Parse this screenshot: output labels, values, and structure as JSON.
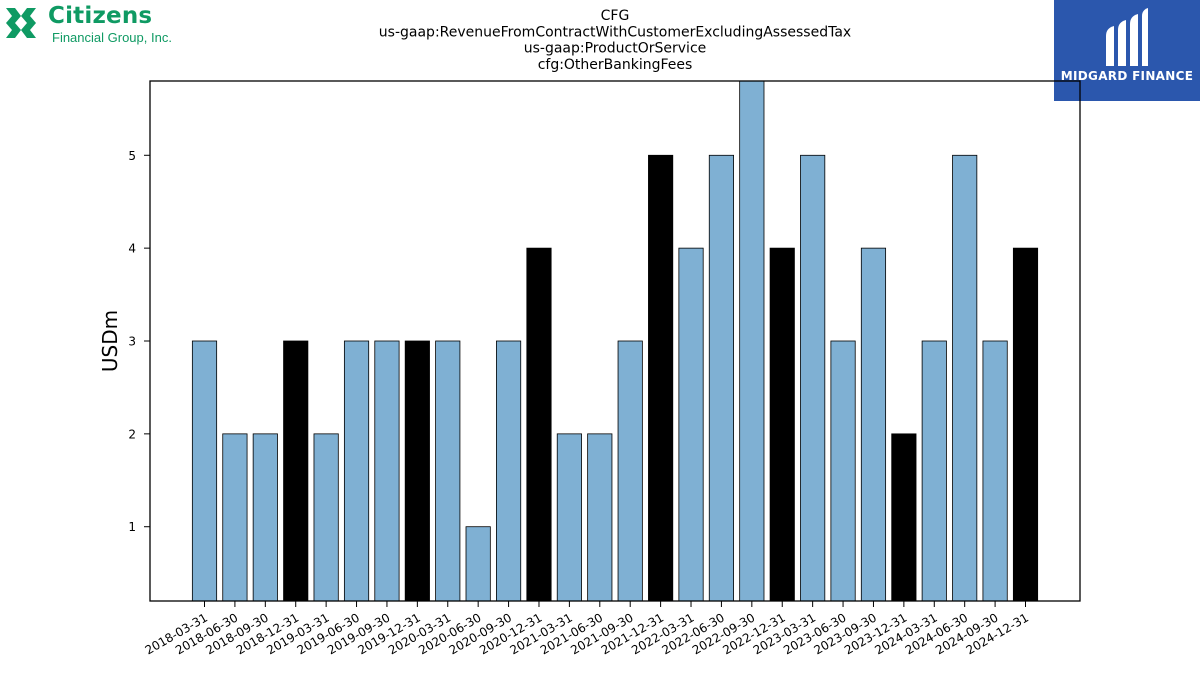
{
  "logos": {
    "left_name": "Citizens",
    "left_sub": "Financial Group, Inc.",
    "right_name": "MIDGARD FINANCE"
  },
  "colors": {
    "bar_default": "#7fb0d3",
    "bar_highlight": "#000000",
    "bar_edge": "#000000",
    "citizens_green": "#0f9a63",
    "midgard_blue": "#2b57ad"
  },
  "chart_data": {
    "type": "bar",
    "title_lines": [
      "CFG",
      "us-gaap:RevenueFromContractWithCustomerExcludingAssessedTax",
      "us-gaap:ProductOrService",
      "cfg:OtherBankingFees"
    ],
    "xlabel": "",
    "ylabel": "USDm",
    "ylim": [
      0.2,
      5.8
    ],
    "yticks": [
      1,
      2,
      3,
      4,
      5
    ],
    "grid": false,
    "categories": [
      "2018-03-31",
      "2018-06-30",
      "2018-09-30",
      "2018-12-31",
      "2019-03-31",
      "2019-06-30",
      "2019-09-30",
      "2019-12-31",
      "2020-03-31",
      "2020-06-30",
      "2020-09-30",
      "2020-12-31",
      "2021-03-31",
      "2021-06-30",
      "2021-09-30",
      "2021-12-31",
      "2022-03-31",
      "2022-06-30",
      "2022-09-30",
      "2022-12-31",
      "2023-03-31",
      "2023-06-30",
      "2023-09-30",
      "2023-12-31",
      "2024-03-31",
      "2024-06-30",
      "2024-09-30",
      "2024-12-31"
    ],
    "values": [
      3,
      2,
      2,
      3,
      2,
      3,
      3,
      3,
      3,
      1,
      3,
      4,
      2,
      2,
      3,
      5,
      4,
      5,
      6,
      4,
      5,
      3,
      4,
      2,
      3,
      5,
      3,
      4
    ],
    "highlight_indices": [
      3,
      7,
      11,
      15,
      19,
      23,
      27
    ]
  }
}
